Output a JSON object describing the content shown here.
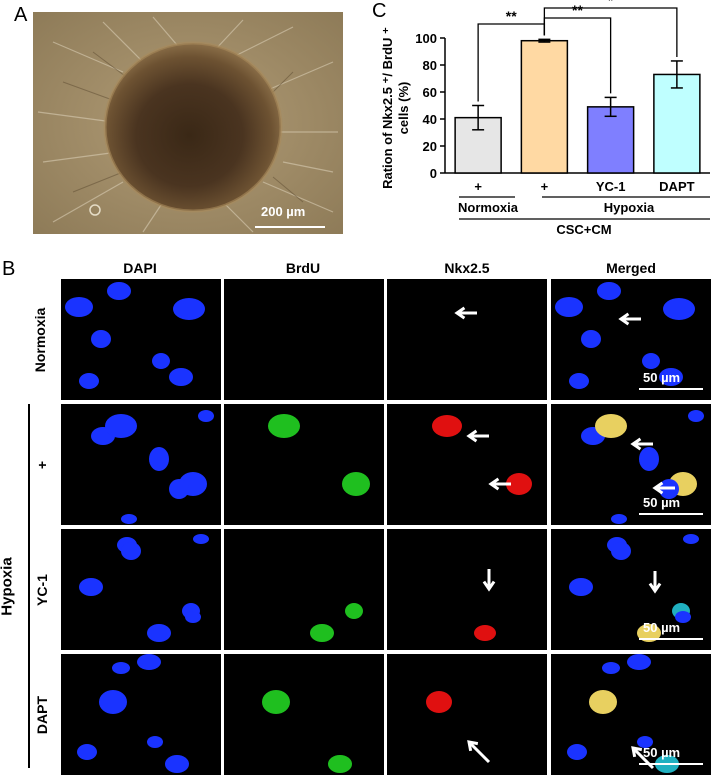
{
  "panel_labels": {
    "a": "A",
    "b": "B",
    "c": "C"
  },
  "panel_a": {
    "scale_label": "200 µm"
  },
  "chart_data": {
    "type": "bar",
    "categories": [
      "+",
      "+",
      "YC-1",
      "DAPT"
    ],
    "values": [
      41,
      98,
      49,
      73
    ],
    "errors": [
      9,
      1,
      7,
      10
    ],
    "bar_colors": [
      "#e6e6e6",
      "#ffd9a3",
      "#7f7fff",
      "#bfffff"
    ],
    "ylabel_line1": "Ration of Nkx2.5 ⁺/ BrdU ⁺",
    "ylabel_line2": "cells (%)",
    "ylim": [
      0,
      100
    ],
    "yticks": [
      "0",
      "20",
      "40",
      "60",
      "80",
      "100"
    ],
    "group_labels": {
      "normoxia": "Normoxia",
      "hypoxia": "Hypoxia",
      "treatment": "CSC+CM"
    },
    "significance": [
      {
        "from": 0,
        "to": 1,
        "label": "**"
      },
      {
        "from": 1,
        "to": 2,
        "label": "**"
      },
      {
        "from": 1,
        "to": 3,
        "label": "*"
      }
    ]
  },
  "panel_b": {
    "columns": [
      "DAPI",
      "BrdU",
      "Nkx2.5",
      "Merged"
    ],
    "rows": [
      "Normoxia",
      "+",
      "YC-1",
      "DAPT"
    ],
    "group_label": "Hypoxia",
    "scale_label": "50 µm"
  }
}
